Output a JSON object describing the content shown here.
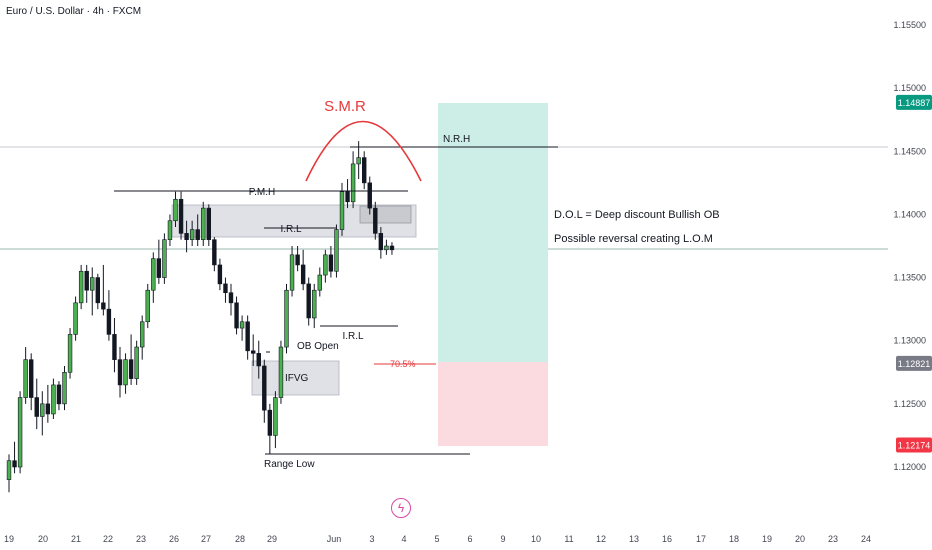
{
  "header": {
    "title": "Euro / U.S. Dollar · 4h · FXCM"
  },
  "colors": {
    "bull": "#4caf50",
    "bear": "#131722",
    "grid": "#ffffff",
    "axis_text": "#434651",
    "target_zone": "#cdeee6",
    "stop_zone": "#fbdbe0",
    "smr": "#e5393b",
    "price_line": "#9db8b3",
    "zone_gray": "#d1d4dc"
  },
  "chart_data": {
    "type": "candlestick",
    "symbol": "EURUSD",
    "timeframe": "4h",
    "ylim": [
      1.1165,
      1.1585
    ],
    "x_ticks": [
      "19",
      "20",
      "21",
      "22",
      "23",
      "26",
      "27",
      "28",
      "29",
      "Jun",
      "3",
      "4",
      "5",
      "6",
      "9",
      "10",
      "11",
      "12",
      "13",
      "16",
      "17",
      "18",
      "19",
      "20",
      "23",
      "24"
    ],
    "y_ticks": [
      "1.15500",
      "1.15000",
      "1.14500",
      "1.14000",
      "1.13500",
      "1.13000",
      "1.12500",
      "1.12000"
    ],
    "price_labels": [
      {
        "text": "1.14887",
        "value": 1.14887,
        "color": "#089981"
      },
      {
        "text": "1.12821",
        "value": 1.12821,
        "color": "#787b86"
      },
      {
        "text": "1.12174",
        "value": 1.12174,
        "color": "#f23645"
      }
    ],
    "candles": [
      [
        1.119,
        1.121,
        1.118,
        1.1205
      ],
      [
        1.1205,
        1.122,
        1.1195,
        1.12
      ],
      [
        1.12,
        1.126,
        1.1195,
        1.1255
      ],
      [
        1.1255,
        1.1295,
        1.125,
        1.1285
      ],
      [
        1.1285,
        1.129,
        1.1245,
        1.1255
      ],
      [
        1.1255,
        1.127,
        1.123,
        1.124
      ],
      [
        1.124,
        1.126,
        1.1225,
        1.125
      ],
      [
        1.125,
        1.1265,
        1.1235,
        1.1242
      ],
      [
        1.1242,
        1.127,
        1.1238,
        1.1265
      ],
      [
        1.1265,
        1.1268,
        1.1245,
        1.125
      ],
      [
        1.125,
        1.128,
        1.1245,
        1.1275
      ],
      [
        1.1275,
        1.131,
        1.127,
        1.1305
      ],
      [
        1.1305,
        1.1335,
        1.13,
        1.133
      ],
      [
        1.133,
        1.136,
        1.1325,
        1.1355
      ],
      [
        1.1355,
        1.136,
        1.133,
        1.134
      ],
      [
        1.134,
        1.1358,
        1.132,
        1.135
      ],
      [
        1.135,
        1.1353,
        1.1325,
        1.133
      ],
      [
        1.133,
        1.136,
        1.132,
        1.1325
      ],
      [
        1.1325,
        1.134,
        1.13,
        1.1305
      ],
      [
        1.1305,
        1.1318,
        1.1275,
        1.1285
      ],
      [
        1.1285,
        1.1295,
        1.1255,
        1.1265
      ],
      [
        1.1265,
        1.129,
        1.1258,
        1.1285
      ],
      [
        1.1285,
        1.1305,
        1.1265,
        1.127
      ],
      [
        1.127,
        1.13,
        1.1265,
        1.1295
      ],
      [
        1.1295,
        1.132,
        1.1285,
        1.1315
      ],
      [
        1.1315,
        1.1345,
        1.131,
        1.134
      ],
      [
        1.134,
        1.137,
        1.133,
        1.1365
      ],
      [
        1.1365,
        1.138,
        1.1345,
        1.135
      ],
      [
        1.135,
        1.1385,
        1.1345,
        1.138
      ],
      [
        1.138,
        1.14,
        1.1375,
        1.1395
      ],
      [
        1.1395,
        1.1418,
        1.139,
        1.1412
      ],
      [
        1.1412,
        1.1418,
        1.138,
        1.1385
      ],
      [
        1.1385,
        1.1395,
        1.137,
        1.138
      ],
      [
        1.138,
        1.1395,
        1.1375,
        1.1388
      ],
      [
        1.1388,
        1.14,
        1.1375,
        1.138
      ],
      [
        1.138,
        1.141,
        1.1375,
        1.1405
      ],
      [
        1.1405,
        1.1408,
        1.1375,
        1.138
      ],
      [
        1.138,
        1.1382,
        1.1355,
        1.136
      ],
      [
        1.136,
        1.1365,
        1.134,
        1.1345
      ],
      [
        1.1345,
        1.135,
        1.133,
        1.1338
      ],
      [
        1.1338,
        1.1345,
        1.132,
        1.133
      ],
      [
        1.133,
        1.1335,
        1.1305,
        1.131
      ],
      [
        1.131,
        1.132,
        1.13,
        1.1315
      ],
      [
        1.1315,
        1.132,
        1.1285,
        1.1292
      ],
      [
        1.1292,
        1.1305,
        1.128,
        1.129
      ],
      [
        1.129,
        1.13,
        1.127,
        1.128
      ],
      [
        1.128,
        1.1285,
        1.1235,
        1.1245
      ],
      [
        1.1245,
        1.125,
        1.121,
        1.1225
      ],
      [
        1.1225,
        1.126,
        1.1215,
        1.1255
      ],
      [
        1.1255,
        1.13,
        1.125,
        1.1295
      ],
      [
        1.1295,
        1.1345,
        1.129,
        1.134
      ],
      [
        1.134,
        1.1375,
        1.1335,
        1.1368
      ],
      [
        1.1368,
        1.1375,
        1.1355,
        1.136
      ],
      [
        1.136,
        1.1372,
        1.134,
        1.1345
      ],
      [
        1.1345,
        1.135,
        1.1312,
        1.1318
      ],
      [
        1.1318,
        1.1345,
        1.131,
        1.134
      ],
      [
        1.134,
        1.1358,
        1.1335,
        1.1352
      ],
      [
        1.1352,
        1.1372,
        1.1346,
        1.1368
      ],
      [
        1.1368,
        1.1375,
        1.135,
        1.1355
      ],
      [
        1.1355,
        1.1392,
        1.135,
        1.1388
      ],
      [
        1.1388,
        1.1425,
        1.1383,
        1.1418
      ],
      [
        1.1418,
        1.1428,
        1.1405,
        1.141
      ],
      [
        1.141,
        1.145,
        1.1405,
        1.144
      ],
      [
        1.144,
        1.1458,
        1.1428,
        1.1445
      ],
      [
        1.1445,
        1.145,
        1.142,
        1.1425
      ],
      [
        1.1425,
        1.143,
        1.14,
        1.1405
      ],
      [
        1.1405,
        1.141,
        1.138,
        1.1385
      ],
      [
        1.1385,
        1.139,
        1.1365,
        1.1372
      ],
      [
        1.1372,
        1.138,
        1.1368,
        1.1375
      ],
      [
        1.1375,
        1.1378,
        1.1368,
        1.1372
      ]
    ],
    "annotations": [
      {
        "text": "S.M.R",
        "color": "#e5393b"
      },
      {
        "text": "N.R.H"
      },
      {
        "text": "P.M.H"
      },
      {
        "text": "I.R.L"
      },
      {
        "text": "I.R.L"
      },
      {
        "text": "OB Open"
      },
      {
        "text": "IFVG"
      },
      {
        "text": "Range Low"
      },
      {
        "text": "70.5%",
        "color": "#e5393b"
      },
      {
        "text": "D.O.L = Deep discount Bullish OB"
      },
      {
        "text": "Possible reversal creating L.O.M"
      }
    ]
  }
}
